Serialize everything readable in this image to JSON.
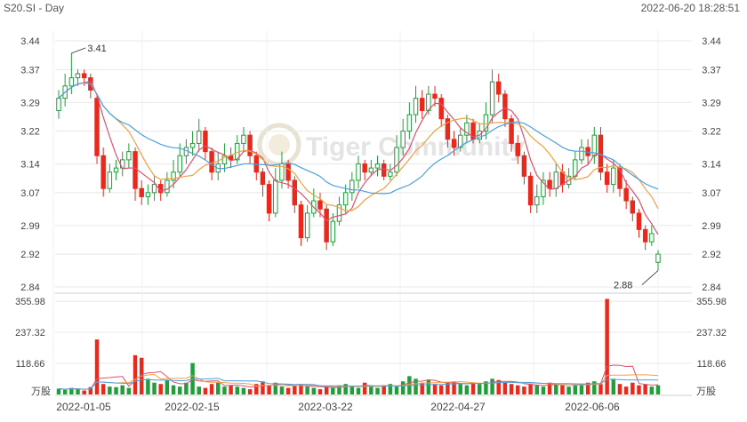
{
  "header": {
    "symbol_period": "S20.SI - Day",
    "timestamp": "2022-06-20 18:28:51"
  },
  "watermark": {
    "text": "Tiger Community",
    "icon": "tiger-logo-icon"
  },
  "colors": {
    "up": "#1f9e3a",
    "down": "#e8291c",
    "ma5": "#e05070",
    "ma10": "#f0a040",
    "ma20": "#4aa0e0",
    "grid": "#e8e8e8",
    "axis_text": "#444444"
  },
  "chart_data": [
    {
      "type": "candlestick",
      "x_tick_labels": [
        "2022-01-05",
        "2022-02-15",
        "2022-03-22",
        "2022-04-27",
        "2022-06-06"
      ],
      "y_tick_labels": [
        "3.44",
        "3.37",
        "3.29",
        "3.22",
        "3.14",
        "3.07",
        "2.99",
        "2.92",
        "2.84"
      ],
      "ylim": [
        2.84,
        3.44
      ],
      "annotations": [
        {
          "text": "3.41",
          "value": 3.41,
          "note": "period high"
        },
        {
          "text": "2.88",
          "value": 2.88,
          "note": "period low"
        }
      ],
      "close": [
        3.3,
        3.33,
        3.35,
        3.36,
        3.35,
        3.32,
        3.16,
        3.08,
        3.12,
        3.13,
        3.15,
        3.17,
        3.08,
        3.06,
        3.07,
        3.09,
        3.07,
        3.1,
        3.12,
        3.16,
        3.18,
        3.19,
        3.22,
        3.17,
        3.12,
        3.14,
        3.16,
        3.15,
        3.19,
        3.21,
        3.16,
        3.12,
        3.09,
        3.02,
        3.1,
        3.14,
        3.1,
        3.04,
        2.96,
        3.02,
        3.05,
        3.03,
        2.95,
        3.0,
        3.04,
        3.07,
        3.1,
        3.14,
        3.12,
        3.13,
        3.14,
        3.11,
        3.12,
        3.18,
        3.22,
        3.26,
        3.3,
        3.27,
        3.31,
        3.3,
        3.25,
        3.2,
        3.18,
        3.21,
        3.24,
        3.2,
        3.22,
        3.26,
        3.34,
        3.31,
        3.25,
        3.19,
        3.16,
        3.11,
        3.04,
        3.06,
        3.1,
        3.08,
        3.12,
        3.09,
        3.11,
        3.15,
        3.18,
        3.16,
        3.21,
        3.12,
        3.09,
        3.13,
        3.08,
        3.05,
        3.02,
        2.98,
        2.95,
        2.97,
        2.92
      ],
      "open": [
        3.27,
        3.3,
        3.33,
        3.35,
        3.36,
        3.35,
        3.3,
        3.16,
        3.08,
        3.12,
        3.13,
        3.15,
        3.17,
        3.08,
        3.06,
        3.07,
        3.09,
        3.07,
        3.1,
        3.12,
        3.16,
        3.18,
        3.19,
        3.22,
        3.17,
        3.12,
        3.14,
        3.16,
        3.15,
        3.19,
        3.21,
        3.16,
        3.12,
        3.09,
        3.02,
        3.1,
        3.14,
        3.1,
        3.04,
        2.96,
        3.02,
        3.05,
        3.03,
        2.95,
        3.0,
        3.04,
        3.07,
        3.1,
        3.14,
        3.12,
        3.13,
        3.14,
        3.11,
        3.12,
        3.18,
        3.22,
        3.26,
        3.3,
        3.27,
        3.31,
        3.3,
        3.25,
        3.2,
        3.18,
        3.21,
        3.24,
        3.2,
        3.22,
        3.26,
        3.34,
        3.31,
        3.25,
        3.19,
        3.16,
        3.11,
        3.04,
        3.06,
        3.1,
        3.08,
        3.12,
        3.09,
        3.11,
        3.15,
        3.18,
        3.16,
        3.21,
        3.12,
        3.09,
        3.13,
        3.08,
        3.05,
        3.02,
        2.98,
        2.95,
        2.9
      ],
      "high": [
        3.32,
        3.36,
        3.41,
        3.37,
        3.37,
        3.36,
        3.31,
        3.18,
        3.14,
        3.15,
        3.17,
        3.19,
        3.18,
        3.1,
        3.09,
        3.11,
        3.1,
        3.12,
        3.15,
        3.19,
        3.2,
        3.22,
        3.25,
        3.23,
        3.18,
        3.17,
        3.19,
        3.18,
        3.21,
        3.23,
        3.22,
        3.17,
        3.13,
        3.1,
        3.13,
        3.17,
        3.15,
        3.11,
        3.05,
        3.04,
        3.08,
        3.07,
        3.04,
        3.02,
        3.06,
        3.09,
        3.12,
        3.16,
        3.15,
        3.15,
        3.16,
        3.15,
        3.14,
        3.21,
        3.25,
        3.29,
        3.33,
        3.32,
        3.33,
        3.33,
        3.31,
        3.26,
        3.22,
        3.23,
        3.26,
        3.25,
        3.24,
        3.29,
        3.37,
        3.36,
        3.32,
        3.26,
        3.21,
        3.17,
        3.12,
        3.09,
        3.12,
        3.12,
        3.14,
        3.14,
        3.13,
        3.17,
        3.2,
        3.2,
        3.23,
        3.23,
        3.14,
        3.15,
        3.14,
        3.1,
        3.06,
        3.03,
        2.99,
        2.99,
        2.93
      ],
      "low": [
        3.25,
        3.28,
        3.31,
        3.33,
        3.33,
        3.3,
        3.14,
        3.06,
        3.07,
        3.1,
        3.11,
        3.13,
        3.05,
        3.04,
        3.04,
        3.05,
        3.05,
        3.06,
        3.08,
        3.11,
        3.14,
        3.16,
        3.17,
        3.15,
        3.1,
        3.1,
        3.12,
        3.13,
        3.14,
        3.17,
        3.14,
        3.1,
        3.06,
        3.0,
        3.01,
        3.08,
        3.08,
        3.02,
        2.94,
        2.95,
        3.01,
        3.01,
        2.93,
        2.94,
        2.99,
        3.02,
        3.05,
        3.08,
        3.1,
        3.11,
        3.11,
        3.1,
        3.1,
        3.11,
        3.16,
        3.2,
        3.24,
        3.25,
        3.26,
        3.28,
        3.23,
        3.18,
        3.16,
        3.17,
        3.19,
        3.19,
        3.19,
        3.2,
        3.24,
        3.29,
        3.23,
        3.17,
        3.14,
        3.09,
        3.02,
        3.02,
        3.04,
        3.06,
        3.06,
        3.07,
        3.08,
        3.1,
        3.14,
        3.14,
        3.14,
        3.1,
        3.07,
        3.07,
        3.06,
        3.03,
        3.0,
        2.96,
        2.93,
        2.94,
        2.88
      ],
      "series": [
        {
          "name": "MA5",
          "color_key": "ma5"
        },
        {
          "name": "MA10",
          "color_key": "ma10"
        },
        {
          "name": "MA20",
          "color_key": "ma20"
        }
      ]
    },
    {
      "type": "bar",
      "y_unit_label": "万股",
      "y_tick_labels": [
        "355.98",
        "237.32",
        "118.66"
      ],
      "ylim": [
        0,
        380
      ],
      "values": [
        22,
        18,
        25,
        20,
        15,
        28,
        210,
        40,
        30,
        28,
        35,
        25,
        150,
        140,
        60,
        45,
        40,
        55,
        35,
        30,
        45,
        120,
        30,
        25,
        40,
        45,
        30,
        35,
        30,
        25,
        20,
        40,
        50,
        35,
        45,
        30,
        25,
        35,
        40,
        30,
        25,
        20,
        30,
        25,
        35,
        40,
        30,
        25,
        45,
        30,
        25,
        35,
        40,
        30,
        50,
        70,
        60,
        45,
        55,
        40,
        35,
        45,
        50,
        40,
        35,
        45,
        40,
        50,
        60,
        55,
        45,
        40,
        35,
        30,
        40,
        35,
        30,
        45,
        40,
        35,
        30,
        35,
        40,
        45,
        50,
        40,
        365,
        60,
        40,
        30,
        45,
        35,
        40,
        30,
        35
      ]
    }
  ]
}
